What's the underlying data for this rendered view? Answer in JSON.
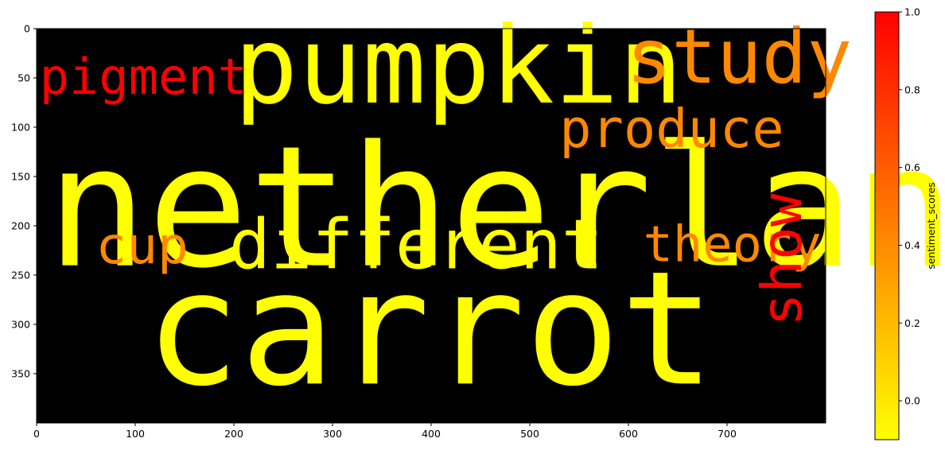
{
  "chart_data": [
    {
      "type": "wordcloud",
      "title": "",
      "xlabel": "",
      "ylabel": "",
      "xlim": [
        0,
        800
      ],
      "ylim": [
        400,
        0
      ],
      "xticks": [
        0,
        100,
        200,
        300,
        400,
        500,
        600,
        700
      ],
      "yticks": [
        0,
        50,
        100,
        150,
        200,
        250,
        300,
        350
      ],
      "background": "#000000",
      "words": [
        {
          "text": "netherland",
          "x": 10,
          "y": 240,
          "size": 170,
          "rotate": 0,
          "sentiment": -0.1,
          "color": "#ffff00"
        },
        {
          "text": "carrot",
          "x": 110,
          "y": 360,
          "size": 160,
          "rotate": 0,
          "sentiment": -0.1,
          "color": "#ffff00"
        },
        {
          "text": "pumpkin",
          "x": 200,
          "y": 75,
          "size": 108,
          "rotate": 0,
          "sentiment": -0.1,
          "color": "#ffff00"
        },
        {
          "text": "different",
          "x": 195,
          "y": 243,
          "size": 70,
          "rotate": 0,
          "sentiment": -0.1,
          "color": "#ffff00"
        },
        {
          "text": "study",
          "x": 598,
          "y": 55,
          "size": 76,
          "rotate": 0,
          "sentiment": 0.4,
          "color": "#ff8800"
        },
        {
          "text": "produce",
          "x": 530,
          "y": 120,
          "size": 54,
          "rotate": 0,
          "sentiment": 0.4,
          "color": "#ff8800"
        },
        {
          "text": "theory",
          "x": 615,
          "y": 236,
          "size": 50,
          "rotate": 0,
          "sentiment": 0.4,
          "color": "#ff8800"
        },
        {
          "text": "cup",
          "x": 60,
          "y": 238,
          "size": 52,
          "rotate": 0,
          "sentiment": 0.4,
          "color": "#ff8800"
        },
        {
          "text": "pigment",
          "x": 3,
          "y": 66,
          "size": 50,
          "rotate": 0,
          "sentiment": 1.0,
          "color": "#ff0000"
        },
        {
          "text": "show",
          "x": 775,
          "y": 302,
          "size": 56,
          "rotate": -90,
          "sentiment": 1.0,
          "color": "#ff0000"
        }
      ]
    },
    {
      "type": "colorbar",
      "label": "sentiment_scores",
      "range": [
        -0.1,
        1.0
      ],
      "ticks": [
        0.0,
        0.2,
        0.4,
        0.6,
        0.8,
        1.0
      ],
      "tick_labels": [
        "0.0",
        "0.2",
        "0.4",
        "0.6",
        "0.8",
        "1.0"
      ],
      "colormap": [
        "#ffff00",
        "#ff0000"
      ]
    }
  ]
}
